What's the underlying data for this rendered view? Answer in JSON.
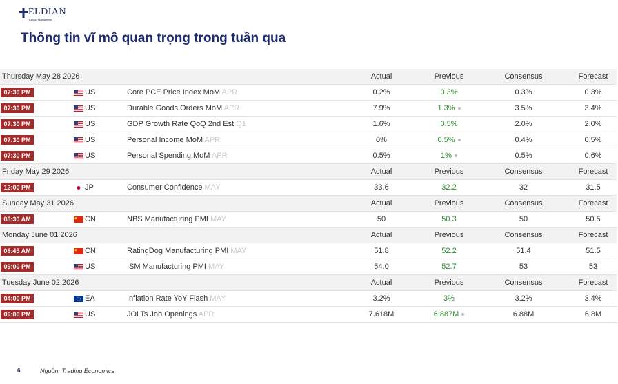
{
  "header": {
    "logo": "ELDIAN",
    "logo_sub": "Capital Management",
    "title": "Thông tin vĩ mô quan trọng trong tuần qua"
  },
  "table": {
    "columns": [
      "Actual",
      "Previous",
      "Consensus",
      "Forecast"
    ],
    "days": [
      {
        "date": "Thursday May 28 2026",
        "events": [
          {
            "time": "07:30 PM",
            "country": "US",
            "event": "Core PCE Price Index MoM",
            "period": "APR",
            "actual": "0.2%",
            "previous": "0.3%",
            "previous_revised": false,
            "consensus": "0.3%",
            "forecast": "0.3%"
          },
          {
            "time": "07:30 PM",
            "country": "US",
            "event": "Durable Goods Orders MoM",
            "period": "APR",
            "actual": "7.9%",
            "previous": "1.3%",
            "previous_revised": true,
            "consensus": "3.5%",
            "forecast": "3.4%"
          },
          {
            "time": "07:30 PM",
            "country": "US",
            "event": "GDP Growth Rate QoQ 2nd Est",
            "period": "Q1",
            "actual": "1.6%",
            "previous": "0.5%",
            "previous_revised": false,
            "consensus": "2.0%",
            "forecast": "2.0%"
          },
          {
            "time": "07:30 PM",
            "country": "US",
            "event": "Personal Income MoM",
            "period": "APR",
            "actual": "0%",
            "previous": "0.5%",
            "previous_revised": true,
            "consensus": "0.4%",
            "forecast": "0.5%"
          },
          {
            "time": "07:30 PM",
            "country": "US",
            "event": "Personal Spending MoM",
            "period": "APR",
            "actual": "0.5%",
            "previous": "1%",
            "previous_revised": true,
            "consensus": "0.5%",
            "forecast": "0.6%"
          }
        ]
      },
      {
        "date": "Friday May 29 2026",
        "events": [
          {
            "time": "12:00 PM",
            "country": "JP",
            "event": "Consumer Confidence",
            "period": "MAY",
            "actual": "33.6",
            "previous": "32.2",
            "previous_revised": false,
            "consensus": "32",
            "forecast": "31.5"
          }
        ]
      },
      {
        "date": "Sunday May 31 2026",
        "events": [
          {
            "time": "08:30 AM",
            "country": "CN",
            "event": "NBS Manufacturing PMI",
            "period": "MAY",
            "actual": "50",
            "previous": "50.3",
            "previous_revised": false,
            "consensus": "50",
            "forecast": "50.5"
          }
        ]
      },
      {
        "date": "Monday June 01 2026",
        "events": [
          {
            "time": "08:45 AM",
            "country": "CN",
            "event": "RatingDog Manufacturing PMI",
            "period": "MAY",
            "actual": "51.8",
            "previous": "52.2",
            "previous_revised": false,
            "consensus": "51.4",
            "forecast": "51.5"
          },
          {
            "time": "09:00 PM",
            "country": "US",
            "event": "ISM Manufacturing PMI",
            "period": "MAY",
            "actual": "54.0",
            "previous": "52.7",
            "previous_revised": false,
            "consensus": "53",
            "forecast": "53"
          }
        ]
      },
      {
        "date": "Tuesday June 02 2026",
        "events": [
          {
            "time": "04:00 PM",
            "country": "EA",
            "event": "Inflation Rate YoY Flash",
            "period": "MAY",
            "actual": "3.2%",
            "previous": "3%",
            "previous_revised": false,
            "consensus": "3.2%",
            "forecast": "3.4%"
          },
          {
            "time": "09:00 PM",
            "country": "US",
            "event": "JOLTs Job Openings",
            "period": "APR",
            "actual": "7.618M",
            "previous": "6.887M",
            "previous_revised": true,
            "consensus": "6.88M",
            "forecast": "6.8M"
          }
        ]
      }
    ]
  },
  "footer": {
    "page": "6",
    "source": "Nguồn: Trading Economics"
  }
}
